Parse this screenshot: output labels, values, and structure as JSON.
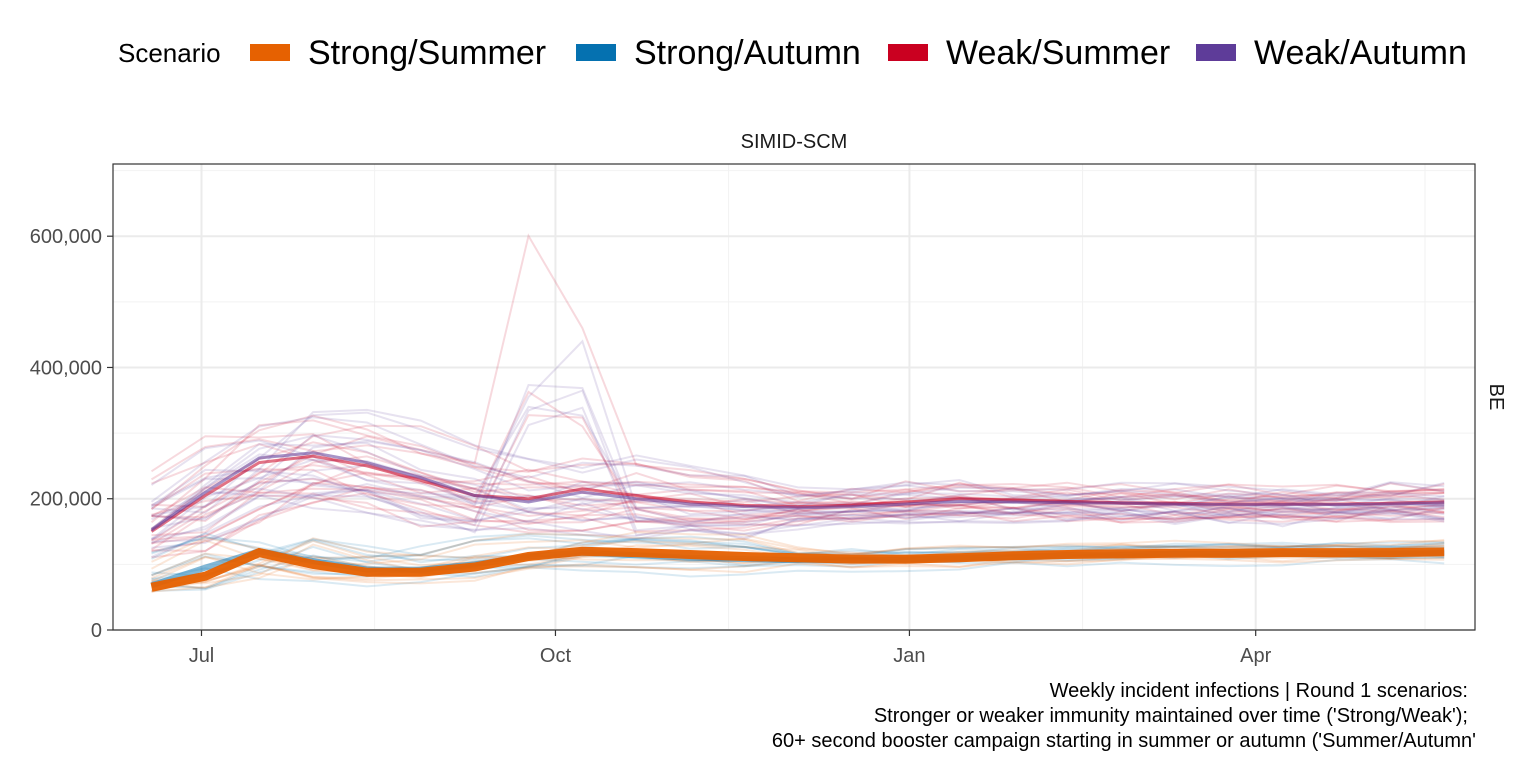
{
  "legend": {
    "title": "Scenario",
    "position": "top",
    "entries": [
      {
        "label": "Strong/Summer",
        "color": "#e66101"
      },
      {
        "label": "Strong/Autumn",
        "color": "#0571b0"
      },
      {
        "label": "Weak/Summer",
        "color": "#ca0020"
      },
      {
        "label": "Weak/Autumn",
        "color": "#5e3c99"
      }
    ]
  },
  "caption": [
    "Weekly incident infections | Round 1 scenarios:",
    "Stronger or weaker immunity maintained over time ('Strong/Weak');",
    "60+ second booster campaign starting in summer or autumn ('Summer/Autumn'"
  ],
  "chart_data": {
    "type": "line",
    "facet_title": "SIMID-SCM",
    "facet_row_label": "BE",
    "x_axis": {
      "type": "date",
      "range": [
        "2022-06-08",
        "2023-05-28"
      ],
      "ticks": [
        {
          "value": "2022-07-01",
          "label": "Jul"
        },
        {
          "value": "2022-10-01",
          "label": "Oct"
        },
        {
          "value": "2023-01-01",
          "label": "Jan"
        },
        {
          "value": "2023-04-01",
          "label": "Apr"
        }
      ],
      "minor_ticks": [
        "2022-08-15",
        "2022-11-15",
        "2023-02-15",
        "2023-05-15"
      ]
    },
    "y_axis": {
      "range": [
        0,
        710000
      ],
      "ticks": [
        {
          "value": 0,
          "label": "0"
        },
        {
          "value": 200000,
          "label": "200,000"
        },
        {
          "value": 400000,
          "label": "400,000"
        },
        {
          "value": 600000,
          "label": "600,000"
        }
      ],
      "minor_ticks": [
        100000,
        300000,
        500000,
        700000
      ]
    },
    "grid": true,
    "x_dates": [
      "2022-06-18",
      "2022-07-02",
      "2022-07-16",
      "2022-07-30",
      "2022-08-13",
      "2022-08-27",
      "2022-09-10",
      "2022-09-24",
      "2022-10-08",
      "2022-10-22",
      "2022-11-05",
      "2022-11-19",
      "2022-12-03",
      "2022-12-17",
      "2022-12-31",
      "2023-01-14",
      "2023-01-28",
      "2023-02-11",
      "2023-02-25",
      "2023-03-11",
      "2023-03-25",
      "2023-04-08",
      "2023-04-22",
      "2023-05-06",
      "2023-05-20"
    ],
    "median_series": [
      {
        "name": "Weak/Summer",
        "color": "#ca0020",
        "values": [
          150000,
          205000,
          255000,
          265000,
          250000,
          228000,
          205000,
          200000,
          215000,
          205000,
          195000,
          190000,
          188000,
          190000,
          195000,
          200000,
          198000,
          196000,
          194000,
          193000,
          192000,
          192000,
          192000,
          193000,
          195000
        ]
      },
      {
        "name": "Weak/Autumn",
        "color": "#5e3c99",
        "values": [
          152000,
          210000,
          262000,
          270000,
          255000,
          232000,
          205000,
          195000,
          210000,
          200000,
          192000,
          188000,
          186000,
          188000,
          192000,
          196000,
          195000,
          194000,
          193000,
          192000,
          191000,
          191000,
          191000,
          192000,
          194000
        ]
      },
      {
        "name": "Strong/Autumn",
        "color": "#0571b0",
        "values": [
          68000,
          95000,
          120000,
          105000,
          92000,
          92000,
          100000,
          112000,
          118000,
          114000,
          110000,
          108000,
          106000,
          106000,
          107000,
          110000,
          112000,
          114000,
          115000,
          116000,
          116000,
          117000,
          117000,
          117000,
          118000
        ]
      },
      {
        "name": "Strong/Summer",
        "color": "#e66101",
        "values": [
          65000,
          82000,
          118000,
          100000,
          88000,
          88000,
          96000,
          112000,
          120000,
          118000,
          115000,
          112000,
          110000,
          108000,
          108000,
          110000,
          113000,
          115000,
          116000,
          117000,
          117000,
          118000,
          118000,
          118000,
          119000
        ]
      }
    ],
    "sample_trajectory_count": 60,
    "line_opacity": 0.15
  }
}
